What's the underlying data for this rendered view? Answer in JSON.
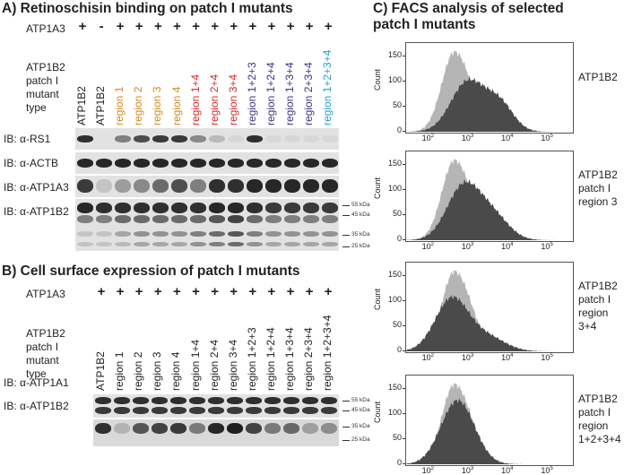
{
  "panelA": {
    "title": "A) Retinoschisin binding on patch I mutants",
    "atp1a3_label": "ATP1A3",
    "atp1a3_signs": [
      "+",
      "-",
      "+",
      "+",
      "+",
      "+",
      "+",
      "+",
      "+",
      "+",
      "+",
      "+",
      "+",
      "+"
    ],
    "type_label": [
      "ATP1B2",
      "patch I",
      "mutant",
      "type"
    ],
    "lanes": [
      {
        "label": "ATP1B2",
        "color": "#222222"
      },
      {
        "label": "ATP1B2",
        "color": "#222222"
      },
      {
        "label": "region 1",
        "color": "#d08a1e"
      },
      {
        "label": "region 2",
        "color": "#d08a1e"
      },
      {
        "label": "region 3",
        "color": "#d08a1e"
      },
      {
        "label": "region 4",
        "color": "#d08a1e"
      },
      {
        "label": "region 1+4",
        "color": "#d42a2a"
      },
      {
        "label": "region 2+4",
        "color": "#d42a2a"
      },
      {
        "label": "region 3+4",
        "color": "#d42a2a"
      },
      {
        "label": "region 1+2+3",
        "color": "#3a3480"
      },
      {
        "label": "region 1+2+4",
        "color": "#3a3480"
      },
      {
        "label": "region 1+3+4",
        "color": "#3a3480"
      },
      {
        "label": "region 2+3+4",
        "color": "#3a3480"
      },
      {
        "label": "region 1+2+3+4",
        "color": "#2a9fc6"
      }
    ],
    "blots": [
      "IB: α-RS1",
      "IB: α-ACTB",
      "IB: α-ATP1A3",
      "IB: α-ATP1B2"
    ],
    "markers": [
      "55 kDa",
      "45 kDa",
      "35 kDa",
      "25 kDa"
    ]
  },
  "panelB": {
    "title": "B) Cell surface expression of patch I mutants",
    "atp1a3_label": "ATP1A3",
    "atp1a3_signs": [
      "+",
      "+",
      "+",
      "+",
      "+",
      "+",
      "+",
      "+",
      "+",
      "+",
      "+",
      "+",
      "+"
    ],
    "type_label": [
      "ATP1B2",
      "patch I",
      "mutant",
      "type"
    ],
    "lanes": [
      "ATP1B2",
      "region 1",
      "region 2",
      "region 3",
      "region 4",
      "region 1+4",
      "region 2+4",
      "region 3+4",
      "region 1+2+3",
      "region 1+2+4",
      "region 1+3+4",
      "region 2+3+4",
      "region 1+2+3+4"
    ],
    "blots": [
      "IB: α-ATP1A1",
      "IB: α-ATP1B2"
    ],
    "markers": [
      "55 kDa",
      "45 kDa",
      "35 kDa",
      "25 kDa"
    ]
  },
  "panelC": {
    "title": [
      "C) FACS analysis of selected",
      "patch I mutants"
    ],
    "ylabel": "Count",
    "yticks": [
      "0",
      "50",
      "100",
      "150"
    ],
    "xticks_base": [
      "10",
      "10",
      "10",
      "10"
    ],
    "xticks_exp": [
      "2",
      "3",
      "4",
      "5"
    ],
    "samples": [
      {
        "name": [
          "ATP1B2"
        ]
      },
      {
        "name": [
          "ATP1B2",
          "patch I",
          "region 3"
        ]
      },
      {
        "name": [
          "ATP1B2",
          "patch I",
          "region",
          "3+4"
        ]
      },
      {
        "name": [
          "ATP1B2",
          "patch I",
          "region",
          "1+2+3+4"
        ]
      }
    ],
    "colors": {
      "control": "#b5b5b5",
      "sample": "#4a4a4a"
    }
  }
}
